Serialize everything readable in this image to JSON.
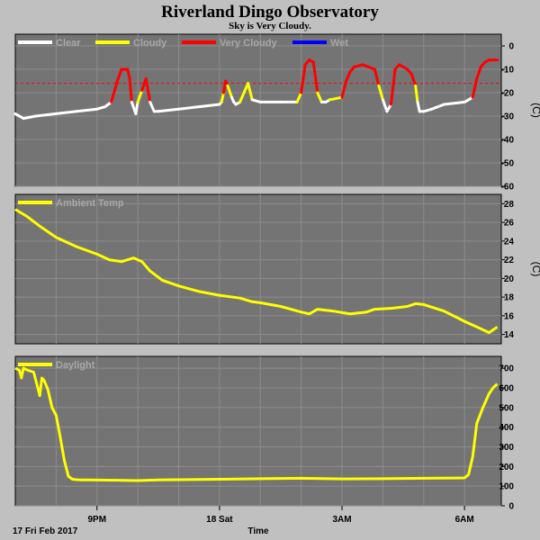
{
  "title": "Riverland Dingo Observatory",
  "subtitle": "Sky is Very Cloudy.",
  "colors": {
    "background": "#c0c0c0",
    "plot_bg": "#747474",
    "grid": "#8c8c8c",
    "clear": "#ffffff",
    "cloudy": "#ffff00",
    "very_cloudy": "#ff0000",
    "wet": "#0000ff",
    "threshold": "#ff0000"
  },
  "x_axis": {
    "label": "Time",
    "date_label": "17 Fri Feb 2017",
    "ticks": [
      "9PM",
      "18 Sat",
      "3AM",
      "6AM"
    ]
  },
  "chart_data": [
    {
      "type": "line",
      "panel": "sky",
      "legend": [
        "Clear",
        "Cloudy",
        "Very Cloudy",
        "Wet"
      ],
      "unit": "(C)",
      "ylim": [
        -60,
        5
      ],
      "yticks": [
        0,
        -10,
        -20,
        -30,
        -40,
        -50,
        -60
      ],
      "threshold": -16,
      "grid": true,
      "x_hours": [
        0,
        0.2,
        0.5,
        1,
        1.5,
        2,
        2.2,
        2.35,
        2.5,
        2.6,
        2.75,
        2.8,
        2.85,
        2.95,
        3.0,
        3.1,
        3.2,
        3.3,
        3.4,
        3.5,
        4,
        4.5,
        5,
        5.05,
        5.1,
        5.15,
        5.2,
        5.3,
        5.35,
        5.4,
        5.5,
        5.6,
        5.7,
        5.8,
        6,
        6.5,
        6.9,
        7.0,
        7.1,
        7.2,
        7.3,
        7.4,
        7.5,
        7.6,
        7.7,
        8,
        8.1,
        8.2,
        8.3,
        8.5,
        8.8,
        8.9,
        9.0,
        9.1,
        9.2,
        9.3,
        9.4,
        9.5,
        9.6,
        9.7,
        9.8,
        9.85,
        9.9,
        10,
        10.2,
        10.5,
        11,
        11.2,
        11.3,
        11.4,
        11.5,
        11.6,
        11.8
      ],
      "values": [
        -29,
        -31,
        -30,
        -29,
        -28,
        -27,
        -26,
        -24,
        -15,
        -10,
        -10,
        -14,
        -24,
        -29,
        -24,
        -19,
        -14,
        -24,
        -28,
        -28,
        -27,
        -26,
        -25,
        -24,
        -20,
        -15,
        -17,
        -22,
        -24,
        -25,
        -24,
        -20,
        -16,
        -23,
        -24,
        -24,
        -24,
        -20,
        -8,
        -6,
        -7,
        -20,
        -24,
        -24,
        -23,
        -22,
        -15,
        -11,
        -9,
        -8,
        -10,
        -17,
        -23,
        -28,
        -25,
        -10,
        -8,
        -9,
        -10,
        -12,
        -17,
        -24,
        -28,
        -28,
        -27,
        -25,
        -24,
        -22,
        -14,
        -9,
        -7,
        -6,
        -6
      ]
    },
    {
      "type": "line",
      "panel": "ambient",
      "legend": [
        "Ambient Temp"
      ],
      "unit": "(C)",
      "ylim": [
        13,
        29
      ],
      "yticks": [
        28,
        26,
        24,
        22,
        20,
        18,
        16,
        14
      ],
      "grid": true,
      "x_hours": [
        0,
        0.3,
        0.6,
        1,
        1.5,
        2,
        2.3,
        2.6,
        2.9,
        3.1,
        3.3,
        3.6,
        4,
        4.5,
        5,
        5.5,
        5.8,
        6,
        6.5,
        7,
        7.2,
        7.4,
        7.8,
        8.2,
        8.6,
        8.8,
        9.2,
        9.6,
        9.8,
        10,
        10.5,
        11,
        11.3,
        11.6,
        11.8
      ],
      "values": [
        27.4,
        26.6,
        25.6,
        24.4,
        23.4,
        22.6,
        22.0,
        21.8,
        22.2,
        21.8,
        20.8,
        19.8,
        19.2,
        18.6,
        18.2,
        17.9,
        17.5,
        17.4,
        17.0,
        16.4,
        16.2,
        16.7,
        16.5,
        16.2,
        16.4,
        16.7,
        16.8,
        17.0,
        17.3,
        17.2,
        16.5,
        15.4,
        14.8,
        14.2,
        14.8
      ]
    },
    {
      "type": "line",
      "panel": "daylight",
      "legend": [
        "Daylight"
      ],
      "unit": "",
      "ylim": [
        0,
        760
      ],
      "yticks": [
        700,
        600,
        500,
        400,
        300,
        200,
        100,
        0
      ],
      "grid": true,
      "x_hours": [
        0,
        0.1,
        0.15,
        0.2,
        0.3,
        0.45,
        0.55,
        0.6,
        0.65,
        0.7,
        0.8,
        0.9,
        1.0,
        1.1,
        1.2,
        1.3,
        1.4,
        1.5,
        1.6,
        1.8,
        2.5,
        3,
        3.5,
        4,
        5,
        6,
        7,
        8,
        9,
        10,
        11.0,
        11.1,
        11.2,
        11.3,
        11.45,
        11.6,
        11.7,
        11.8
      ],
      "values": [
        700,
        690,
        650,
        700,
        690,
        680,
        600,
        560,
        650,
        640,
        590,
        500,
        460,
        350,
        230,
        150,
        135,
        133,
        132,
        132,
        130,
        128,
        132,
        133,
        135,
        138,
        140,
        137,
        138,
        140,
        142,
        160,
        250,
        420,
        500,
        570,
        600,
        620
      ]
    }
  ]
}
